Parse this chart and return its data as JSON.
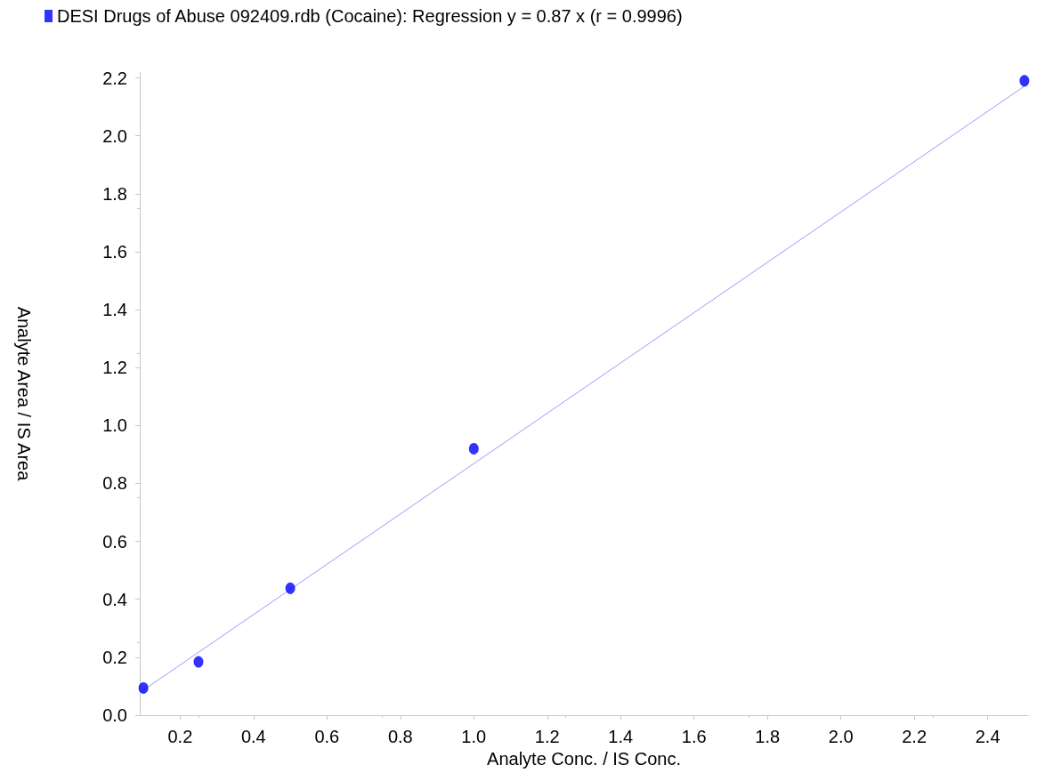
{
  "chart_data": {
    "type": "scatter",
    "xlabel": "Analyte Conc. / IS Conc.",
    "ylabel": "Analyte Area / IS Area",
    "series": [
      {
        "name": "DESI Drugs of Abuse 092409.rdb (Cocaine): Regression y = 0.87 x (r = 0.9996)",
        "color": "#0000ff",
        "x": [
          0.1,
          0.25,
          0.5,
          1.0,
          2.5
        ],
        "values": [
          0.094,
          0.184,
          0.438,
          0.92,
          2.19
        ]
      },
      {
        "type": "line",
        "color": "#9999ff",
        "marker": "none",
        "x": [
          0.09,
          2.51
        ],
        "values": [
          0.078,
          2.18
        ]
      }
    ],
    "xlim": [
      0.09,
      2.51
    ],
    "ylim": [
      0,
      2.22
    ],
    "xticks": [
      0.2,
      0.4,
      0.6,
      0.8,
      {
        "value": 1,
        "label": "1.0"
      },
      1.2,
      1.4,
      1.6,
      1.8,
      {
        "value": 2,
        "label": "2.0"
      },
      2.2,
      2.4
    ],
    "yticks": [
      {
        "value": 0,
        "label": "0.0"
      },
      0.2,
      0.4,
      0.6,
      0.8,
      {
        "value": 1,
        "label": "1.0"
      },
      1.2,
      1.4,
      1.6,
      1.8,
      {
        "value": 2,
        "label": "2.0"
      },
      2.2
    ],
    "marker": "circle",
    "legend": "top left",
    "grid": false
  }
}
